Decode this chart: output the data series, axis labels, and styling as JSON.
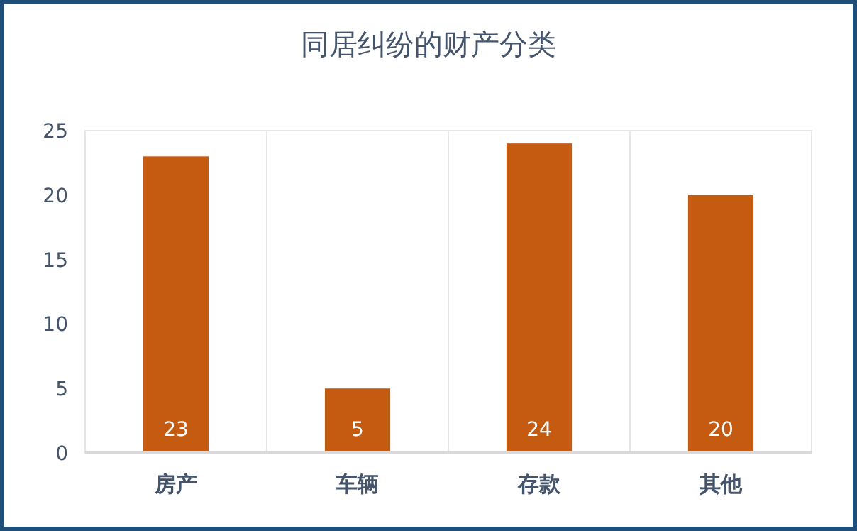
{
  "chart_data": {
    "type": "bar",
    "title": "同居纠纷的财产分类",
    "categories": [
      "房产",
      "车辆",
      "存款",
      "其他"
    ],
    "values": [
      23,
      5,
      24,
      20
    ],
    "color": "#c55a11",
    "ylim": [
      0,
      25
    ],
    "yticks": [
      0,
      5,
      10,
      15,
      20,
      25
    ],
    "grid": "x",
    "data_labels": true
  }
}
